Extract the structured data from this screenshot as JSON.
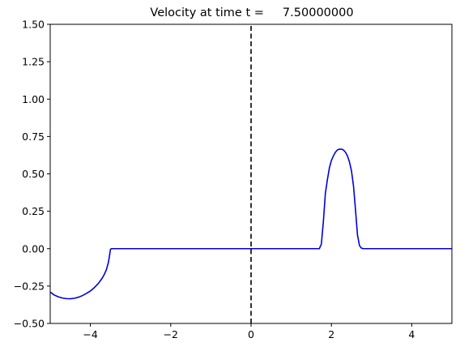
{
  "chart_data": {
    "type": "line",
    "title": "Velocity at time t =     7.50000000",
    "xlabel": "",
    "ylabel": "",
    "xlim": [
      -5,
      5
    ],
    "ylim": [
      -0.5,
      1.5
    ],
    "x_ticks": [
      -4,
      -2,
      0,
      2,
      4
    ],
    "x_tick_labels": [
      "−4",
      "−2",
      "0",
      "2",
      "4"
    ],
    "y_ticks": [
      -0.5,
      -0.25,
      0.0,
      0.25,
      0.5,
      0.75,
      1.0,
      1.25,
      1.5
    ],
    "y_tick_labels": [
      "−0.50",
      "−0.25",
      "0.00",
      "0.25",
      "0.50",
      "0.75",
      "1.00",
      "1.25",
      "1.50"
    ],
    "grid": false,
    "series": [
      {
        "color": "#0000dd",
        "style": "solid",
        "x": [
          -5.0,
          -4.9,
          -4.8,
          -4.7,
          -4.6,
          -4.5,
          -4.4,
          -4.3,
          -4.2,
          -4.1,
          -4.0,
          -3.9,
          -3.8,
          -3.7,
          -3.65,
          -3.6,
          -3.55,
          -3.52,
          -3.5,
          -3.48,
          1.7,
          1.75,
          1.8,
          1.85,
          1.9,
          1.95,
          2.0,
          2.05,
          2.1,
          2.15,
          2.2,
          2.25,
          2.3,
          2.35,
          2.4,
          2.45,
          2.5,
          2.55,
          2.6,
          2.65,
          2.7,
          2.75,
          2.8,
          2.85,
          5.0
        ],
        "y": [
          -0.29,
          -0.31,
          -0.322,
          -0.33,
          -0.334,
          -0.335,
          -0.332,
          -0.325,
          -0.314,
          -0.3,
          -0.283,
          -0.26,
          -0.232,
          -0.195,
          -0.17,
          -0.14,
          -0.09,
          -0.04,
          -0.005,
          0.0,
          0.0,
          0.03,
          0.18,
          0.37,
          0.46,
          0.54,
          0.59,
          0.62,
          0.645,
          0.66,
          0.665,
          0.665,
          0.66,
          0.645,
          0.62,
          0.58,
          0.52,
          0.42,
          0.26,
          0.09,
          0.02,
          0.003,
          0.0,
          0.0,
          0.0
        ]
      },
      {
        "color": "#000000",
        "style": "dashed",
        "x": [
          0,
          0
        ],
        "y": [
          -0.5,
          1.5
        ]
      }
    ]
  }
}
